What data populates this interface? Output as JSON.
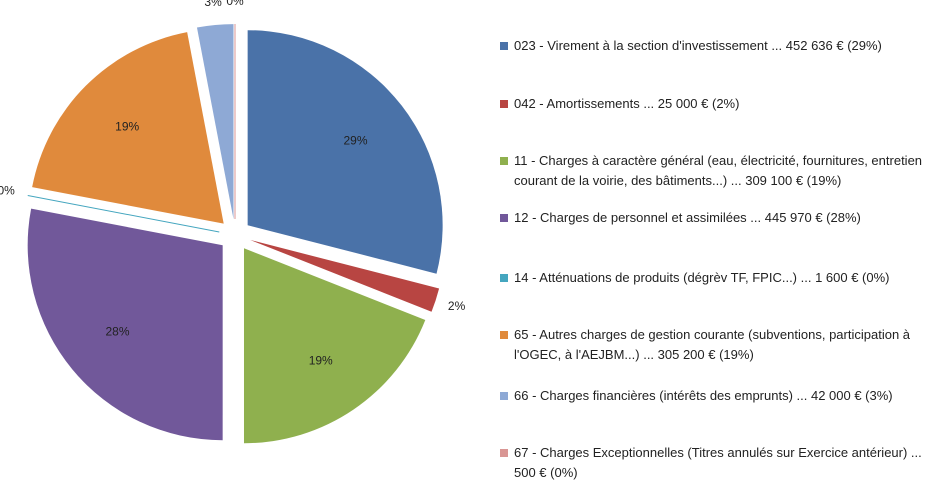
{
  "chart_data": {
    "type": "pie",
    "categories": [
      "023 - Virement à la section d'investissement ... 452 636 € (29%)",
      "042 - Amortissements ... 25 000 € (2%)",
      "11 - Charges à caractère général (eau, électricité, fournitures, entretien courant de la voirie, des bâtiments...) ... 309 100 € (19%)",
      "12 - Charges de personnel et assimilées ... 445 970 € (28%)",
      "14 - Atténuations de produits (dégrèv TF, FPIC...) ... 1 600 € (0%)",
      "65 - Autres charges de gestion courante (subventions, participation à l'OGEC, à l'AEJBM...) ... 305 200 € (19%)",
      "66 - Charges financières (intérêts des emprunts) ... 42 000 € (3%)",
      "67 - Charges Exceptionnelles (Titres annulés sur Exercice antérieur) ... 500 € (0%)"
    ],
    "values": [
      29,
      2,
      19,
      28,
      0,
      19,
      3,
      0
    ],
    "value_labels": [
      "29%",
      "2%",
      "19%",
      "28%",
      "0%",
      "19%",
      "3%",
      "0%"
    ],
    "colors": [
      "#4a72a8",
      "#b84542",
      "#8fb04e",
      "#71589a",
      "#45a6bf",
      "#e08a3c",
      "#8ea9d5",
      "#d99694"
    ],
    "legend": "right"
  }
}
